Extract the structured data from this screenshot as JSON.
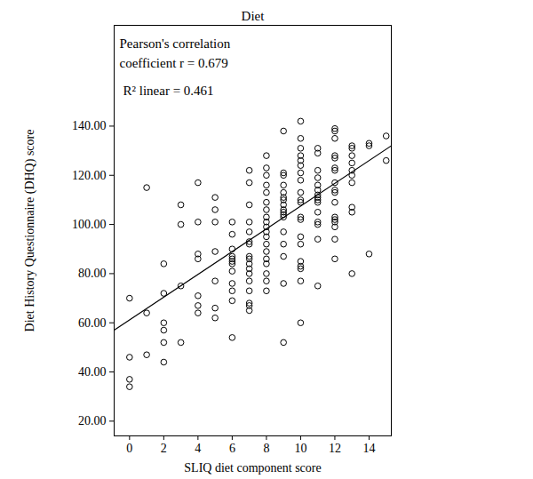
{
  "chart_data": {
    "type": "scatter",
    "title": "Diet",
    "x_label": "SLIQ diet component score",
    "y_label": "Diet History Questionnaire (DHQ) score",
    "annotations": [
      "Pearson's correlation",
      "coefficient r = 0.679",
      "R² linear = 0.461"
    ],
    "xlim": [
      -0.9,
      15.3
    ],
    "xticks": [
      0,
      2,
      4,
      6,
      8,
      10,
      12,
      14
    ],
    "ylim": [
      14,
      181
    ],
    "yticks": [
      {
        "value": 20,
        "label": "20.00"
      },
      {
        "value": 40,
        "label": "40.00"
      },
      {
        "value": 60,
        "label": "60.00"
      },
      {
        "value": 80,
        "label": "80.00"
      },
      {
        "value": 100,
        "label": "100.00"
      },
      {
        "value": 120,
        "label": "120.00"
      },
      {
        "value": 140,
        "label": "140.00"
      }
    ],
    "grid": false,
    "color": "#000000",
    "series": [
      {
        "type": "scatter",
        "marker": "circle",
        "x": [
          0,
          0,
          0,
          0,
          1,
          1,
          1,
          2,
          2,
          2,
          2,
          2,
          2,
          3,
          3,
          3,
          3,
          4,
          4,
          4,
          4,
          4,
          4,
          4,
          5,
          5,
          5,
          5,
          5,
          5,
          5,
          6,
          6,
          6,
          6,
          6,
          6,
          6,
          6,
          6,
          6,
          6,
          6,
          7,
          7,
          7,
          7,
          7,
          7,
          7,
          7,
          7,
          7,
          7,
          7,
          7,
          7,
          7,
          7,
          7,
          8,
          8,
          8,
          8,
          8,
          8,
          8,
          8,
          8,
          8,
          8,
          8,
          8,
          8,
          8,
          8,
          8,
          8,
          8,
          9,
          9,
          9,
          9,
          9,
          9,
          9,
          9,
          9,
          9,
          9,
          9,
          9,
          9,
          9,
          9,
          9,
          10,
          10,
          10,
          10,
          10,
          10,
          10,
          10,
          10,
          10,
          10,
          10,
          10,
          10,
          10,
          10,
          10,
          10,
          10,
          10,
          11,
          11,
          11,
          11,
          11,
          11,
          11,
          11,
          11,
          11,
          11,
          11,
          11,
          11,
          11,
          12,
          12,
          12,
          12,
          12,
          12,
          12,
          12,
          12,
          12,
          12,
          12,
          12,
          12,
          12,
          12,
          12,
          13,
          13,
          13,
          13,
          13,
          13,
          13,
          13,
          13,
          13,
          14,
          14,
          14,
          15,
          15
        ],
        "values": [
          70,
          46,
          37,
          34,
          115,
          64,
          47,
          84,
          72,
          60,
          57,
          52,
          44,
          108,
          100,
          75,
          52,
          117,
          101,
          88,
          86,
          71,
          67,
          64,
          111,
          106,
          101,
          89,
          77,
          66,
          62,
          101,
          96,
          90,
          87,
          86,
          85,
          84,
          81,
          76,
          73,
          69,
          54,
          122,
          117,
          108,
          101,
          97,
          93,
          92,
          87,
          86,
          84,
          82,
          80,
          77,
          73,
          68,
          67,
          65,
          128,
          123,
          120,
          116,
          113,
          109,
          106,
          103,
          101,
          99,
          97,
          95,
          92,
          89,
          86,
          84,
          80,
          77,
          73,
          138,
          121,
          120,
          116,
          113,
          111,
          110,
          108,
          106,
          105,
          104,
          103,
          97,
          92,
          87,
          76,
          52,
          142,
          135,
          131,
          128,
          126,
          124,
          121,
          118,
          113,
          110,
          109,
          103,
          102,
          95,
          92,
          85,
          83,
          82,
          77,
          60,
          131,
          129,
          122,
          119,
          116,
          114,
          112,
          111,
          110,
          109,
          105,
          101,
          100,
          94,
          75,
          139,
          138,
          135,
          128,
          127,
          123,
          122,
          117,
          114,
          113,
          109,
          103,
          102,
          101,
          99,
          94,
          86,
          132,
          131,
          128,
          125,
          122,
          120,
          117,
          107,
          105,
          80,
          133,
          132,
          88,
          136,
          126
        ]
      },
      {
        "type": "line",
        "line_style": "solid",
        "x": [
          -0.9,
          15.3
        ],
        "values": [
          57,
          132
        ]
      }
    ]
  }
}
